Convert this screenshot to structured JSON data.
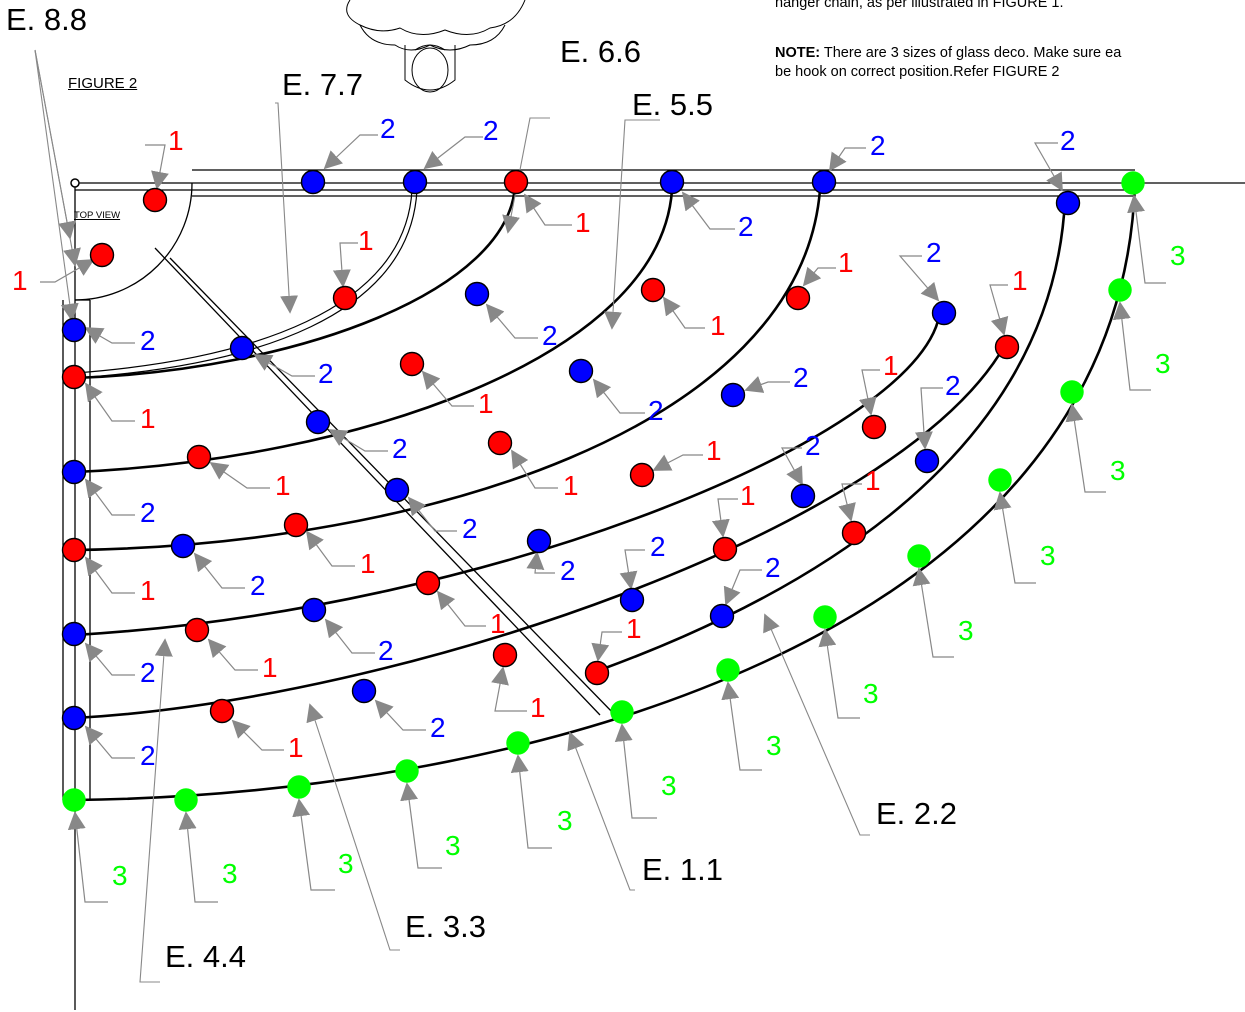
{
  "figure_title": "FIGURE 2",
  "top_view_label": "TOP VIEW",
  "notes": {
    "line1": "hanger chain, as per illustrated in FIGURE 1.",
    "note_prefix": "NOTE:",
    "note_text": " There are 3 sizes of glass deco. Make sure ea",
    "line3": "be hook on correct position.Refer FIGURE 2"
  },
  "colors": {
    "size1": "#ff0000",
    "size2": "#0000ff",
    "size3": "#00ff00",
    "line": "#000000",
    "leader": "#888888"
  },
  "legend_sizes": {
    "size_1": "1",
    "size_2": "2",
    "size_3": "3"
  },
  "rings": [
    {
      "name": "E. 1.1"
    },
    {
      "name": "E. 2.2"
    },
    {
      "name": "E. 3.3"
    },
    {
      "name": "E. 4.4"
    },
    {
      "name": "E. 5.5"
    },
    {
      "name": "E. 6.6"
    },
    {
      "name": "E. 7.7"
    },
    {
      "name": "E. 8.8"
    }
  ]
}
